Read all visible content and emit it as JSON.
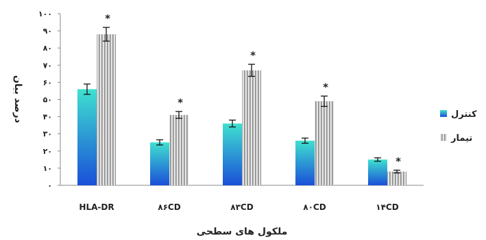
{
  "chart_data": {
    "type": "bar",
    "categories": [
      "HLA-DR",
      "۸۶CD",
      "۸۳CD",
      "۸۰CD",
      "۱۴CD"
    ],
    "series": [
      {
        "name": "کنترل",
        "values": [
          56,
          25,
          36,
          26,
          15
        ],
        "errors": [
          3,
          1.5,
          2,
          1.5,
          1
        ],
        "color_top": "#3fe0d0",
        "color_bottom": "#1a4fd8"
      },
      {
        "name": "تیمار",
        "values": [
          88,
          41,
          67,
          49,
          8
        ],
        "errors": [
          4,
          2,
          3.5,
          3,
          0.8
        ],
        "color_top": "#f4f4f4",
        "color_bottom": "#9a9a9a"
      }
    ],
    "significance": [
      "*",
      "*",
      "*",
      "*",
      "*"
    ],
    "ylim": [
      0,
      100
    ],
    "yticks": [
      "۰",
      "۱۰",
      "۲۰",
      "۳۰",
      "۴۰",
      "۵۰",
      "۶۰",
      "۷۰",
      "۸۰",
      "۹۰",
      "۱۰۰"
    ],
    "ylabel": "درصد بیان",
    "xlabel": "ملکول های سطحی",
    "legend_position": "right",
    "grid": false
  }
}
